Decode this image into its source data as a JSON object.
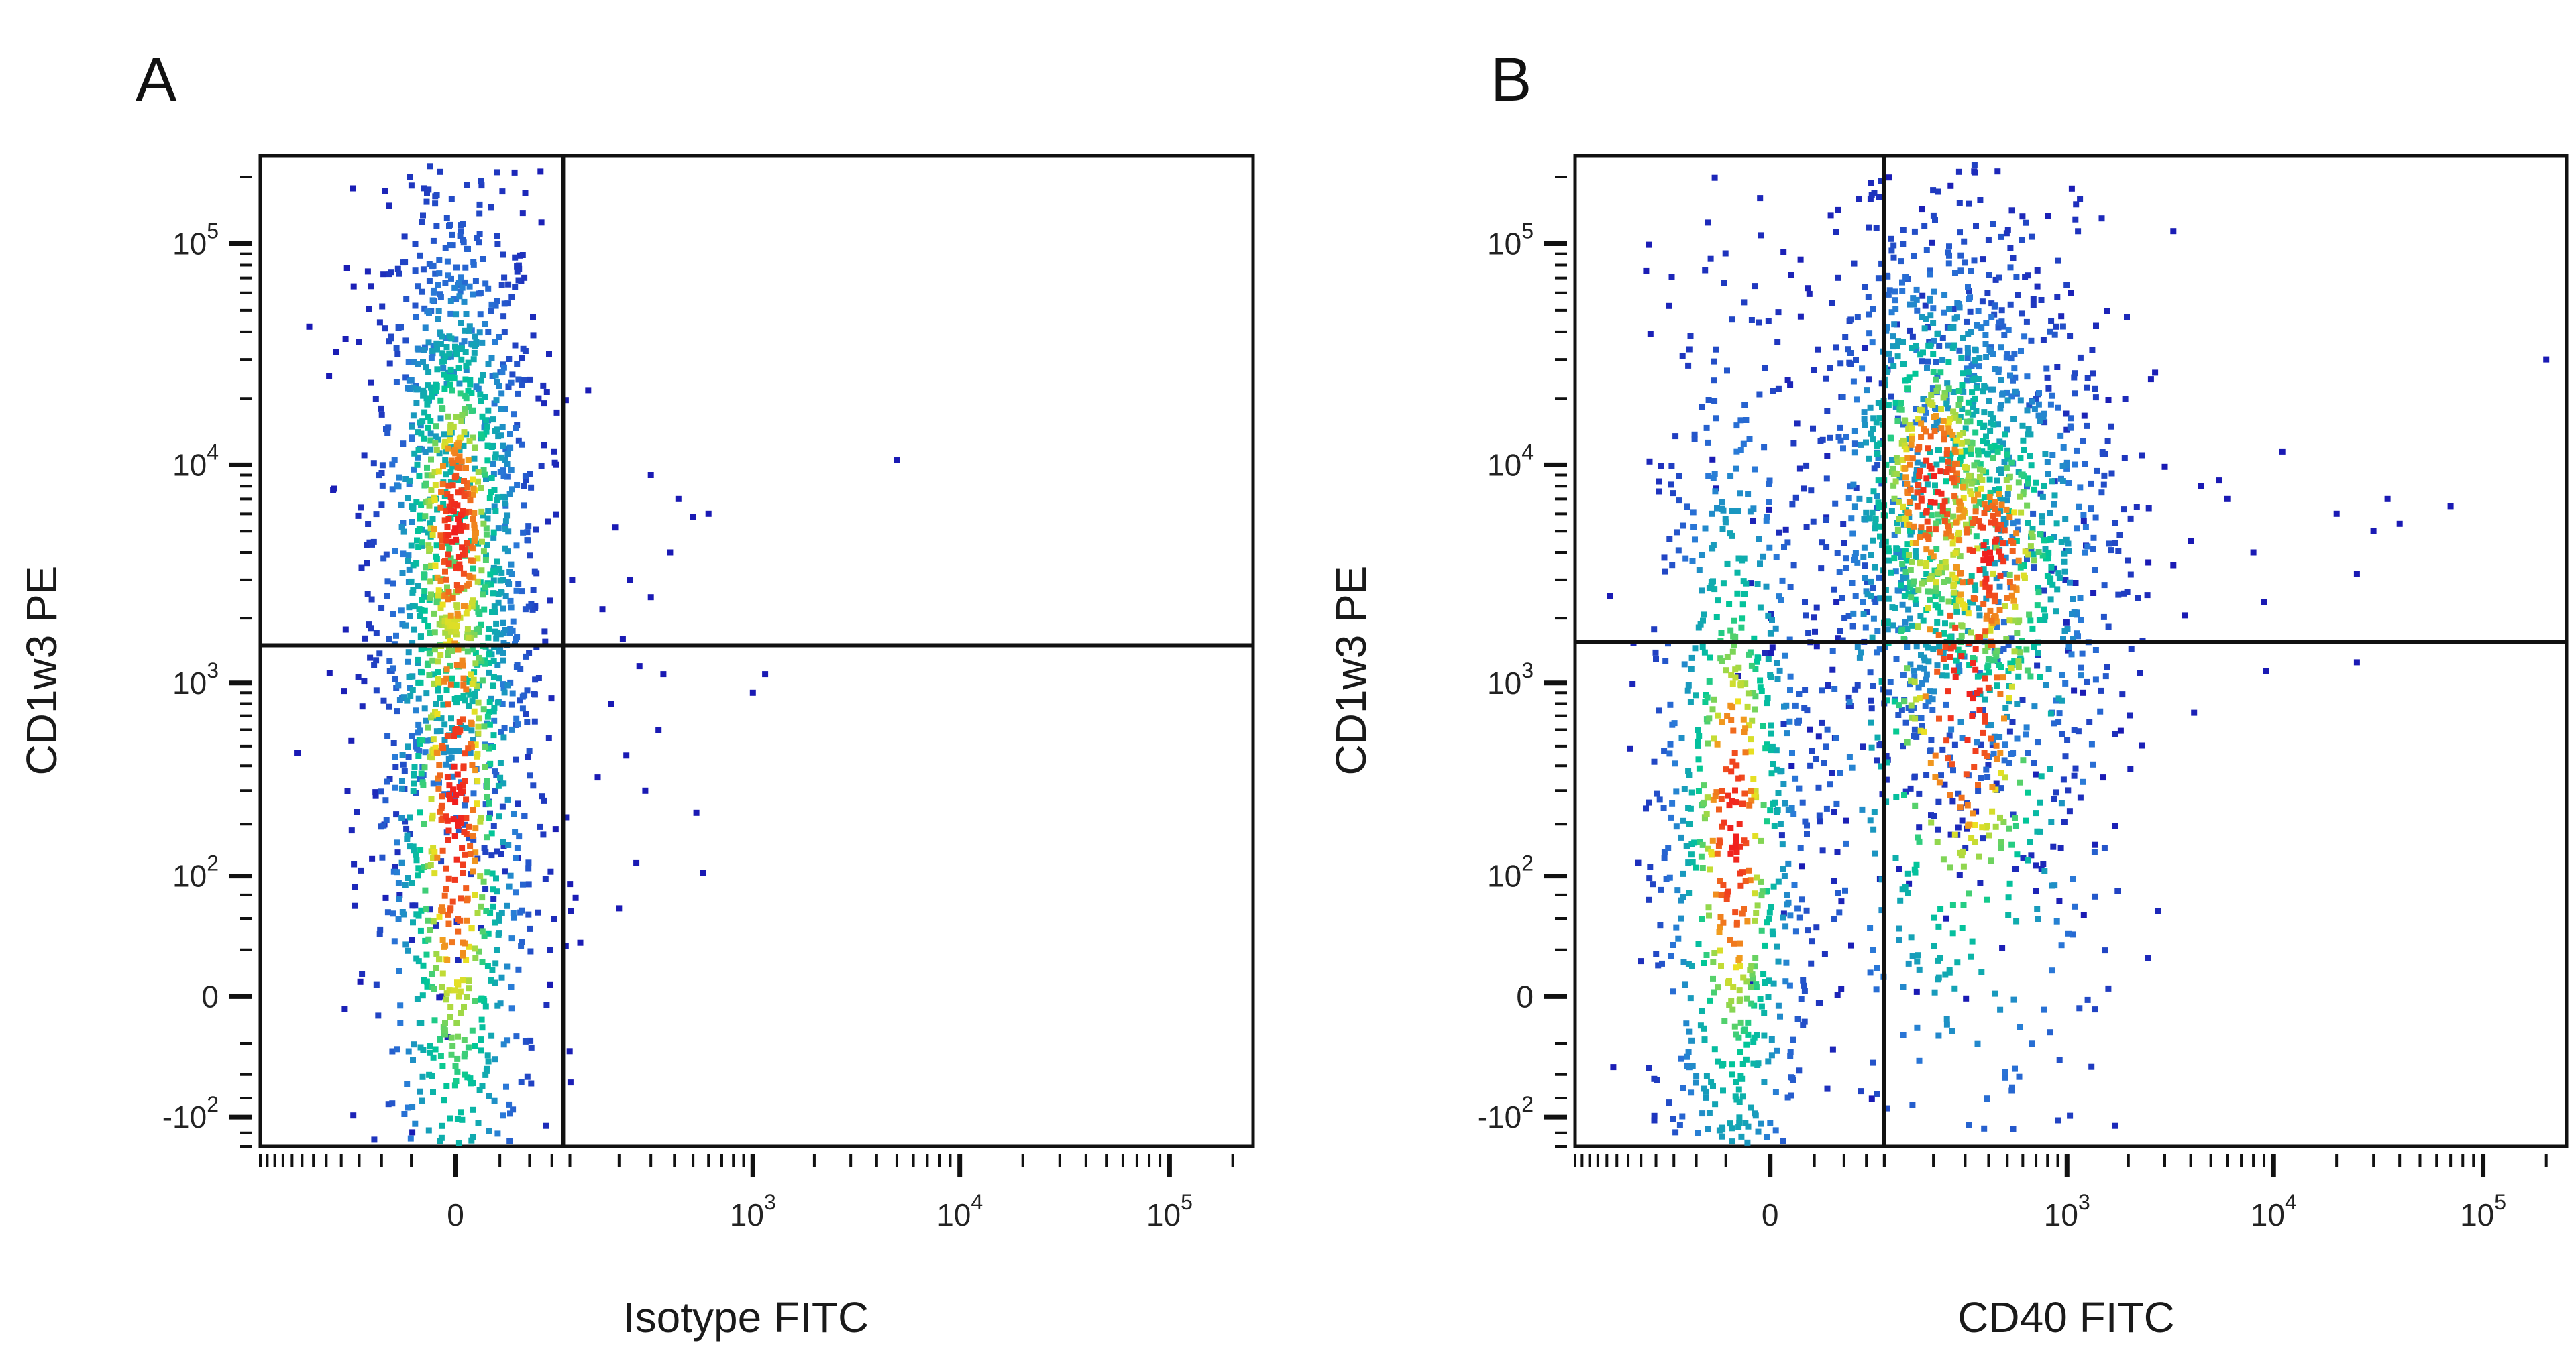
{
  "chart_data": [
    {
      "panel_label": "A",
      "type": "scatter",
      "subtype": "flow-cytometry-pseudocolor-density",
      "xlabel": "Isotype FITC",
      "ylabel": "CD1w3 PE",
      "x_scale": "biexponential",
      "y_scale": "biexponential",
      "xlim": [
        -300,
        250000
      ],
      "ylim": [
        -150,
        250000
      ],
      "x_ticks": [
        {
          "value": 0,
          "base": "0",
          "exp": ""
        },
        {
          "value": 1000,
          "base": "10",
          "exp": "3"
        },
        {
          "value": 10000,
          "base": "10",
          "exp": "4"
        },
        {
          "value": 100000,
          "base": "10",
          "exp": "5"
        }
      ],
      "y_ticks": [
        {
          "value": -100,
          "base": "-10",
          "exp": "2"
        },
        {
          "value": 0,
          "base": "0",
          "exp": ""
        },
        {
          "value": 100,
          "base": "10",
          "exp": "2"
        },
        {
          "value": 1000,
          "base": "10",
          "exp": "3"
        },
        {
          "value": 10000,
          "base": "10",
          "exp": "4"
        },
        {
          "value": 100000,
          "base": "10",
          "exp": "5"
        }
      ],
      "quadrant_gate": {
        "x": 90,
        "y": 1500
      },
      "populations": [
        {
          "center_x": 0,
          "center_y": 5000,
          "spread_x": 0.05,
          "spread_y": 0.2,
          "count": 900
        },
        {
          "center_x": 0,
          "center_y": 250,
          "spread_x": 0.05,
          "spread_y": 0.38,
          "count": 1100
        }
      ],
      "scattered_events": [
        {
          "x": 5000,
          "y": 10500
        },
        {
          "x": 1000,
          "y": 900
        },
        {
          "x": 1150,
          "y": 1100
        },
        {
          "x": 500,
          "y": 5800
        },
        {
          "x": 600,
          "y": 6000
        },
        {
          "x": 380,
          "y": 4000
        },
        {
          "x": 300,
          "y": 9000
        },
        {
          "x": 520,
          "y": 230
        },
        {
          "x": 560,
          "y": 105
        },
        {
          "x": 250,
          "y": 120
        },
        {
          "x": 280,
          "y": 300
        },
        {
          "x": 330,
          "y": 600
        },
        {
          "x": 210,
          "y": 1600
        },
        {
          "x": 230,
          "y": 3000
        },
        {
          "x": 260,
          "y": 1200
        },
        {
          "x": 180,
          "y": 800
        },
        {
          "x": 200,
          "y": 60
        },
        {
          "x": 300,
          "y": 2500
        },
        {
          "x": 420,
          "y": 7000
        },
        {
          "x": 160,
          "y": 2200
        },
        {
          "x": 220,
          "y": 450
        },
        {
          "x": 350,
          "y": 1100
        },
        {
          "x": 150,
          "y": 350
        },
        {
          "x": 190,
          "y": 5200
        }
      ],
      "colors": {
        "low": "#1a1ab4",
        "mid": "#00c896",
        "high": "#f01e1e"
      }
    },
    {
      "panel_label": "B",
      "type": "scatter",
      "subtype": "flow-cytometry-pseudocolor-density",
      "xlabel": "CD40 FITC",
      "ylabel": "CD1w3 PE",
      "x_scale": "biexponential",
      "y_scale": "biexponential",
      "xlim": [
        -300,
        250000
      ],
      "ylim": [
        -150,
        250000
      ],
      "x_ticks": [
        {
          "value": 0,
          "base": "0",
          "exp": ""
        },
        {
          "value": 1000,
          "base": "10",
          "exp": "3"
        },
        {
          "value": 10000,
          "base": "10",
          "exp": "4"
        },
        {
          "value": 100000,
          "base": "10",
          "exp": "5"
        }
      ],
      "y_ticks": [
        {
          "value": -100,
          "base": "-10",
          "exp": "2"
        },
        {
          "value": 0,
          "base": "0",
          "exp": ""
        },
        {
          "value": 100,
          "base": "10",
          "exp": "2"
        },
        {
          "value": 1000,
          "base": "10",
          "exp": "3"
        },
        {
          "value": 10000,
          "base": "10",
          "exp": "4"
        },
        {
          "value": 100000,
          "base": "10",
          "exp": "5"
        }
      ],
      "quadrant_gate": {
        "x": 100,
        "y": 1550
      },
      "populations": [
        {
          "center_x": -20,
          "center_y": 180,
          "spread_x": 0.05,
          "spread_y": 0.3,
          "count": 800
        },
        {
          "center_x": 200,
          "center_y": 8000,
          "spread_x": 0.07,
          "spread_y": 0.16,
          "count": 800
        },
        {
          "center_x": 400,
          "center_y": 3800,
          "spread_x": 0.08,
          "spread_y": 0.15,
          "count": 700
        },
        {
          "center_x": 300,
          "center_y": 900,
          "spread_x": 0.1,
          "spread_y": 0.3,
          "count": 600
        }
      ],
      "scattered_events": [
        {
          "x": 3000,
          "y": 9800
        },
        {
          "x": 5500,
          "y": 8500
        },
        {
          "x": 11000,
          "y": 11500
        },
        {
          "x": 25000,
          "y": 3200
        },
        {
          "x": 30000,
          "y": 5000
        },
        {
          "x": 35000,
          "y": 7000
        },
        {
          "x": 70000,
          "y": 6500
        },
        {
          "x": 200000,
          "y": 30000
        },
        {
          "x": 25000,
          "y": 1250
        },
        {
          "x": 1500,
          "y": 350
        },
        {
          "x": 4000,
          "y": 4500
        },
        {
          "x": 6000,
          "y": 7000
        },
        {
          "x": 20000,
          "y": 6000
        },
        {
          "x": 3300,
          "y": 3500
        },
        {
          "x": 8000,
          "y": 4000
        },
        {
          "x": 2500,
          "y": 3600
        },
        {
          "x": 4500,
          "y": 8000
        },
        {
          "x": 40000,
          "y": 5400
        },
        {
          "x": 160,
          "y": 2
        },
        {
          "x": 1200,
          "y": 900
        }
      ],
      "colors": {
        "low": "#1a1ab4",
        "mid": "#00c896",
        "high": "#f01e1e"
      }
    }
  ]
}
